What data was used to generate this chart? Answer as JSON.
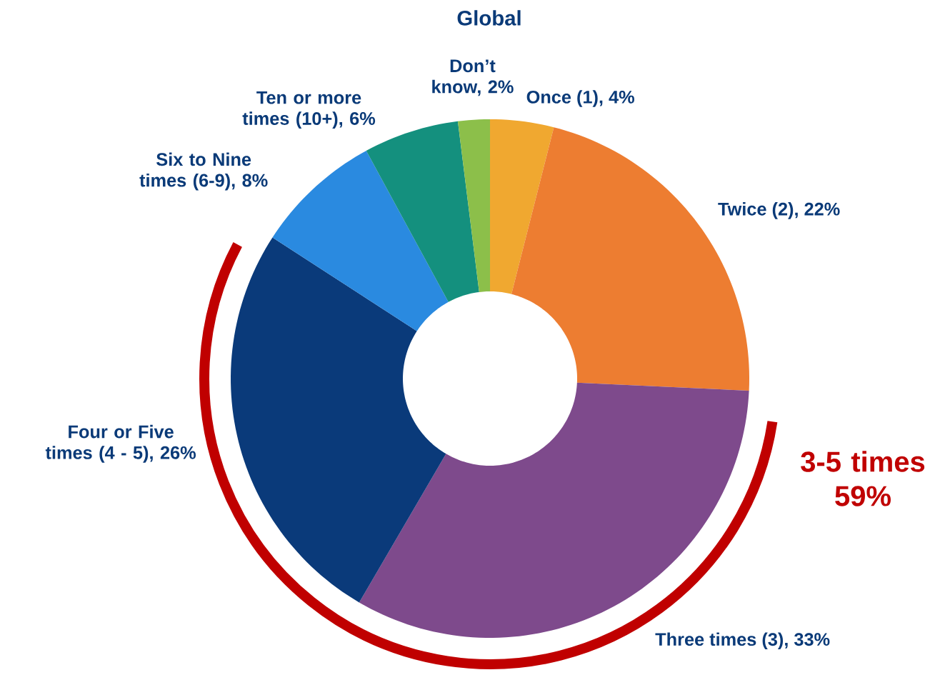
{
  "chart_data": {
    "type": "donut",
    "title": "Global",
    "categories": [
      "Once (1), 4%",
      "Twice (2), 22%",
      "Three times (3), 33%",
      "Four or Five times (4 - 5), 26%",
      "Six to Nine times (6-9), 8%",
      "Ten or more times (10+), 6%",
      "Don’t know, 2%"
    ],
    "values": [
      4,
      22,
      33,
      26,
      8,
      6,
      2
    ],
    "colors": [
      "#f0a830",
      "#ed7d31",
      "#7e4a8c",
      "#0a3a7a",
      "#2a8ae0",
      "#14907e",
      "#8cbf4a"
    ],
    "annotations": [
      "3-5 times 59%"
    ]
  }
}
